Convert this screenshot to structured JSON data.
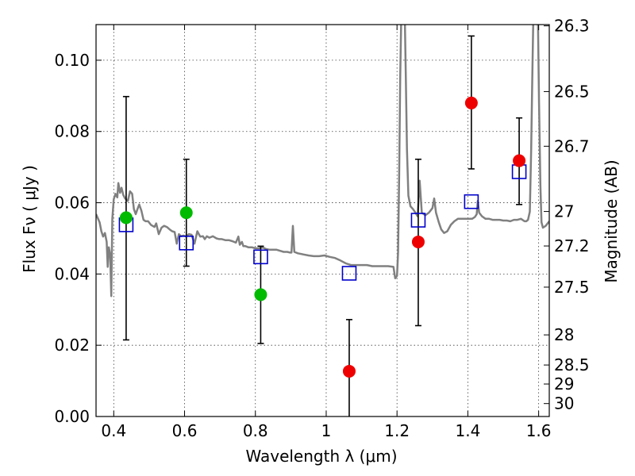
{
  "chart_data": {
    "type": "scatter",
    "xlabel": "Wavelength  λ (μm)",
    "ylabel": "Flux  Fν  ( μJy )",
    "ylabel_right": "Magnitude (AB)",
    "xlim": [
      0.35,
      1.63
    ],
    "ylim": [
      0.0,
      0.11
    ],
    "grid": true,
    "x_ticks": [
      0.4,
      0.6,
      0.8,
      1.0,
      1.2,
      1.4,
      1.6
    ],
    "x_tick_labels": [
      "0.4",
      "0.6",
      "0.8",
      "1",
      "1.2",
      "1.4",
      "1.6"
    ],
    "y_ticks": [
      0.0,
      0.02,
      0.04,
      0.06,
      0.08,
      0.1
    ],
    "y_tick_labels": [
      "0.00",
      "0.02",
      "0.04",
      "0.06",
      "0.08",
      "0.10"
    ],
    "right_ticks": [
      {
        "label": "26.3",
        "mag": 26.3
      },
      {
        "label": "26.5",
        "mag": 26.5
      },
      {
        "label": "26.7",
        "mag": 26.7
      },
      {
        "label": "27",
        "mag": 27.0
      },
      {
        "label": "27.2",
        "mag": 27.2
      },
      {
        "label": "27.5",
        "mag": 27.5
      },
      {
        "label": "28",
        "mag": 28.0
      },
      {
        "label": "28.5",
        "mag": 28.5
      },
      {
        "label": "29",
        "mag": 29.0
      },
      {
        "label": "30",
        "mag": 30.0
      }
    ],
    "colors": {
      "green": "#00bb00",
      "red": "#ee0000",
      "model": "#0000cc",
      "template": "#808080",
      "errorbar": "#000000"
    },
    "green_points": [
      {
        "x": 0.435,
        "y": 0.0558,
        "ylo": 0.0215,
        "yhi": 0.0898
      },
      {
        "x": 0.605,
        "y": 0.0572,
        "ylo": 0.0422,
        "yhi": 0.0722
      },
      {
        "x": 0.815,
        "y": 0.0342,
        "ylo": 0.0205,
        "yhi": 0.0478
      }
    ],
    "red_points": [
      {
        "x": 1.065,
        "y": 0.0127,
        "ylo": 0.0,
        "yhi": 0.0272
      },
      {
        "x": 1.26,
        "y": 0.049,
        "ylo": 0.0255,
        "yhi": 0.0722
      },
      {
        "x": 1.41,
        "y": 0.088,
        "ylo": 0.0695,
        "yhi": 0.1068
      },
      {
        "x": 1.545,
        "y": 0.0718,
        "ylo": 0.0595,
        "yhi": 0.0838
      }
    ],
    "model_points": [
      {
        "x": 0.435,
        "y": 0.0538
      },
      {
        "x": 0.605,
        "y": 0.0487
      },
      {
        "x": 0.815,
        "y": 0.0448
      },
      {
        "x": 1.065,
        "y": 0.0402
      },
      {
        "x": 1.26,
        "y": 0.0551
      },
      {
        "x": 1.41,
        "y": 0.0603
      },
      {
        "x": 1.545,
        "y": 0.0687
      }
    ],
    "template_spectrum": [
      [
        0.35,
        0.0568
      ],
      [
        0.36,
        0.0545
      ],
      [
        0.365,
        0.052
      ],
      [
        0.37,
        0.0505
      ],
      [
        0.375,
        0.0515
      ],
      [
        0.38,
        0.049
      ],
      [
        0.383,
        0.042
      ],
      [
        0.386,
        0.0475
      ],
      [
        0.39,
        0.0455
      ],
      [
        0.393,
        0.0338
      ],
      [
        0.396,
        0.0555
      ],
      [
        0.4,
        0.061
      ],
      [
        0.405,
        0.0625
      ],
      [
        0.41,
        0.0615
      ],
      [
        0.413,
        0.0655
      ],
      [
        0.418,
        0.0628
      ],
      [
        0.422,
        0.0642
      ],
      [
        0.427,
        0.0622
      ],
      [
        0.432,
        0.0612
      ],
      [
        0.44,
        0.0605
      ],
      [
        0.446,
        0.0632
      ],
      [
        0.452,
        0.0625
      ],
      [
        0.457,
        0.0582
      ],
      [
        0.462,
        0.0568
      ],
      [
        0.467,
        0.0582
      ],
      [
        0.472,
        0.0595
      ],
      [
        0.478,
        0.0578
      ],
      [
        0.484,
        0.0552
      ],
      [
        0.49,
        0.0548
      ],
      [
        0.497,
        0.0548
      ],
      [
        0.505,
        0.0538
      ],
      [
        0.515,
        0.0532
      ],
      [
        0.52,
        0.0542
      ],
      [
        0.527,
        0.0512
      ],
      [
        0.535,
        0.053
      ],
      [
        0.542,
        0.0535
      ],
      [
        0.55,
        0.0532
      ],
      [
        0.558,
        0.0525
      ],
      [
        0.565,
        0.052
      ],
      [
        0.572,
        0.0518
      ],
      [
        0.578,
        0.0485
      ],
      [
        0.584,
        0.0512
      ],
      [
        0.59,
        0.0506
      ],
      [
        0.597,
        0.0508
      ],
      [
        0.605,
        0.0505
      ],
      [
        0.612,
        0.0512
      ],
      [
        0.62,
        0.051
      ],
      [
        0.628,
        0.0485
      ],
      [
        0.636,
        0.052
      ],
      [
        0.644,
        0.0505
      ],
      [
        0.652,
        0.0506
      ],
      [
        0.657,
        0.0498
      ],
      [
        0.663,
        0.0506
      ],
      [
        0.67,
        0.0502
      ],
      [
        0.68,
        0.0506
      ],
      [
        0.69,
        0.05
      ],
      [
        0.698,
        0.0498
      ],
      [
        0.705,
        0.0498
      ],
      [
        0.715,
        0.0495
      ],
      [
        0.725,
        0.0495
      ],
      [
        0.735,
        0.0492
      ],
      [
        0.745,
        0.0488
      ],
      [
        0.752,
        0.0505
      ],
      [
        0.756,
        0.0482
      ],
      [
        0.762,
        0.049
      ],
      [
        0.766,
        0.0478
      ],
      [
        0.772,
        0.0478
      ],
      [
        0.78,
        0.0475
      ],
      [
        0.79,
        0.0475
      ],
      [
        0.8,
        0.0472
      ],
      [
        0.81,
        0.0472
      ],
      [
        0.82,
        0.0475
      ],
      [
        0.83,
        0.047
      ],
      [
        0.84,
        0.0468
      ],
      [
        0.85,
        0.0468
      ],
      [
        0.86,
        0.0468
      ],
      [
        0.87,
        0.0465
      ],
      [
        0.88,
        0.0462
      ],
      [
        0.89,
        0.0462
      ],
      [
        0.898,
        0.046
      ],
      [
        0.902,
        0.046
      ],
      [
        0.906,
        0.0535
      ],
      [
        0.91,
        0.0462
      ],
      [
        0.92,
        0.0458
      ],
      [
        0.935,
        0.0455
      ],
      [
        0.95,
        0.0452
      ],
      [
        0.965,
        0.045
      ],
      [
        0.98,
        0.045
      ],
      [
        0.995,
        0.0452
      ],
      [
        1.01,
        0.0448
      ],
      [
        1.025,
        0.0445
      ],
      [
        1.04,
        0.0438
      ],
      [
        1.055,
        0.043
      ],
      [
        1.07,
        0.0425
      ],
      [
        1.085,
        0.0425
      ],
      [
        1.1,
        0.0425
      ],
      [
        1.115,
        0.0425
      ],
      [
        1.13,
        0.0422
      ],
      [
        1.145,
        0.0422
      ],
      [
        1.16,
        0.0422
      ],
      [
        1.175,
        0.0422
      ],
      [
        1.19,
        0.042
      ],
      [
        1.195,
        0.0388
      ],
      [
        1.2,
        0.0395
      ],
      [
        1.203,
        0.046
      ],
      [
        1.206,
        0.068
      ],
      [
        1.209,
        0.095
      ],
      [
        1.212,
        0.112
      ],
      [
        1.222,
        0.112
      ],
      [
        1.225,
        0.095
      ],
      [
        1.228,
        0.075
      ],
      [
        1.232,
        0.062
      ],
      [
        1.238,
        0.059
      ],
      [
        1.245,
        0.0582
      ],
      [
        1.252,
        0.0572
      ],
      [
        1.258,
        0.0562
      ],
      [
        1.264,
        0.0662
      ],
      [
        1.27,
        0.0572
      ],
      [
        1.28,
        0.0565
      ],
      [
        1.29,
        0.0572
      ],
      [
        1.3,
        0.0585
      ],
      [
        1.305,
        0.0612
      ],
      [
        1.31,
        0.0572
      ],
      [
        1.318,
        0.0545
      ],
      [
        1.325,
        0.0525
      ],
      [
        1.333,
        0.0515
      ],
      [
        1.342,
        0.052
      ],
      [
        1.352,
        0.0538
      ],
      [
        1.362,
        0.0548
      ],
      [
        1.372,
        0.0555
      ],
      [
        1.382,
        0.0555
      ],
      [
        1.392,
        0.0555
      ],
      [
        1.402,
        0.0555
      ],
      [
        1.412,
        0.0555
      ],
      [
        1.42,
        0.056
      ],
      [
        1.425,
        0.0568
      ],
      [
        1.428,
        0.0605
      ],
      [
        1.432,
        0.0572
      ],
      [
        1.44,
        0.0562
      ],
      [
        1.45,
        0.0555
      ],
      [
        1.46,
        0.0555
      ],
      [
        1.47,
        0.0552
      ],
      [
        1.48,
        0.0552
      ],
      [
        1.49,
        0.0552
      ],
      [
        1.5,
        0.055
      ],
      [
        1.51,
        0.055
      ],
      [
        1.52,
        0.0548
      ],
      [
        1.53,
        0.0552
      ],
      [
        1.54,
        0.0552
      ],
      [
        1.55,
        0.0555
      ],
      [
        1.56,
        0.0548
      ],
      [
        1.565,
        0.0548
      ],
      [
        1.57,
        0.0552
      ],
      [
        1.575,
        0.0575
      ],
      [
        1.579,
        0.075
      ],
      [
        1.582,
        0.095
      ],
      [
        1.585,
        0.112
      ],
      [
        1.598,
        0.112
      ],
      [
        1.601,
        0.088
      ],
      [
        1.605,
        0.065
      ],
      [
        1.608,
        0.0545
      ],
      [
        1.612,
        0.053
      ],
      [
        1.62,
        0.0535
      ],
      [
        1.63,
        0.0548
      ]
    ]
  }
}
